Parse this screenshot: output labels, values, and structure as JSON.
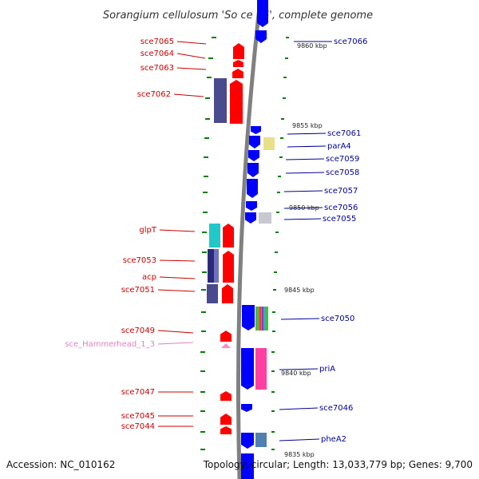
{
  "title": "Sorangium cellulosum 'So ce 56', complete genome",
  "footer": {
    "accession": "Accession: NC_010162",
    "topology": "Topology: circular; Length: 13,033,779 bp; Genes: 9,700"
  },
  "colors": {
    "forward_gene": "#ff0000",
    "reverse_gene": "#0000ff",
    "forward_label": "#cc0000",
    "reverse_label": "#000099",
    "rna_label": "#e080c0",
    "tick": "#008000",
    "backbone": "#808080"
  },
  "positions": [
    "9860 kbp",
    "9855 kbp",
    "9850 kbp",
    "9845 kbp",
    "9840 kbp",
    "9835 kbp"
  ],
  "left_labels": [
    "sce7065",
    "sce7064",
    "sce7063",
    "sce7062",
    "glpT",
    "sce7053",
    "acp",
    "sce7051",
    "sce7049",
    "sce_Hammerhead_1_3",
    "sce7047",
    "sce7045",
    "sce7044"
  ],
  "right_labels": [
    "sce7066",
    "sce7061",
    "parA4",
    "sce7059",
    "sce7058",
    "sce7057",
    "sce7056",
    "sce7055",
    "sce7050",
    "priA",
    "sce7046",
    "pheA2"
  ]
}
